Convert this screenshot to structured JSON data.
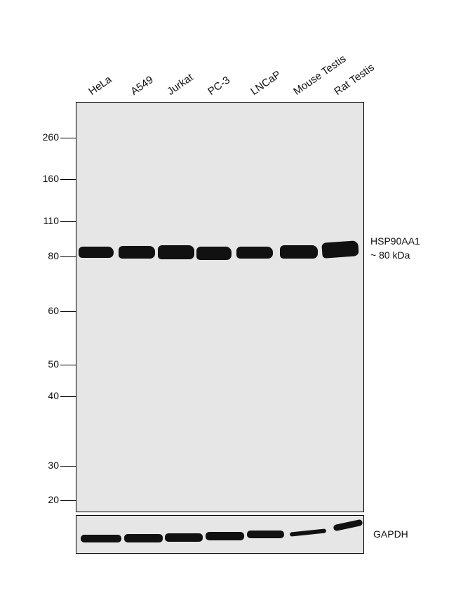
{
  "lanes": [
    "HeLa",
    "A549",
    "Jurkat",
    "PC-3",
    "LNCaP",
    "Mouse Testis",
    "Rat Testis"
  ],
  "markers": [
    {
      "label": "260",
      "value": 260
    },
    {
      "label": "160",
      "value": 160
    },
    {
      "label": "110",
      "value": 110
    },
    {
      "label": "80",
      "value": 80
    },
    {
      "label": "60",
      "value": 60
    },
    {
      "label": "50",
      "value": 50
    },
    {
      "label": "40",
      "value": 40
    },
    {
      "label": "30",
      "value": 30
    },
    {
      "label": "20",
      "value": 20
    }
  ],
  "main_label": {
    "line1": "HSP90AA1",
    "line2": "~ 80 kDa"
  },
  "loading_label": "GAPDH",
  "colors": {
    "panel": "#e6e6e6",
    "band": "#111111"
  }
}
